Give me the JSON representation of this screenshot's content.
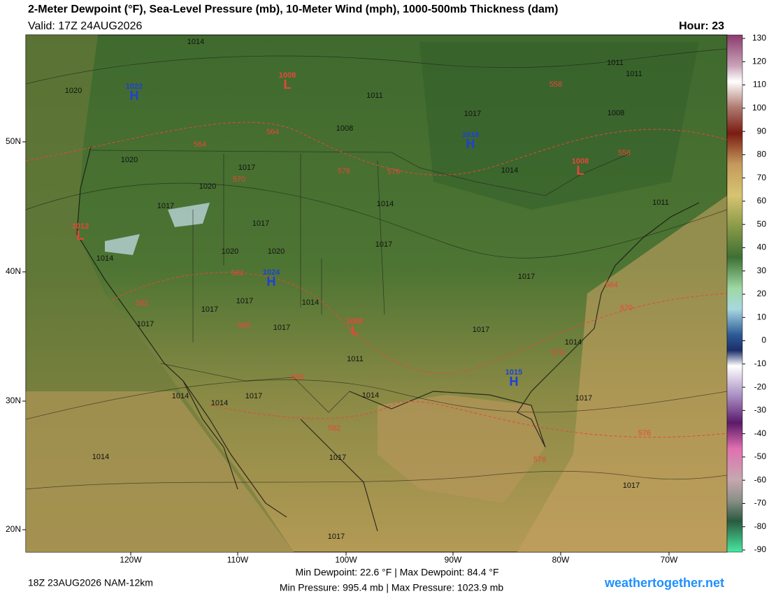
{
  "header": {
    "title": "2-Meter Dewpoint (°F), Sea-Level Pressure (mb), 10-Meter Wind (mph), 1000-500mb Thickness (dam)",
    "valid": "Valid: 17Z 24AUG2026",
    "hour": "Hour: 23"
  },
  "colorbar": {
    "ticks": [
      130,
      120,
      110,
      100,
      90,
      80,
      70,
      60,
      50,
      40,
      30,
      20,
      10,
      0,
      -10,
      -20,
      -30,
      -40,
      -50,
      -60,
      -70,
      -80,
      -90
    ]
  },
  "axes": {
    "lat_labels": [
      "50N",
      "40N",
      "30N",
      "20N"
    ],
    "lon_labels": [
      "120W",
      "110W",
      "100W",
      "90W",
      "80W",
      "70W"
    ]
  },
  "pressure_centers": [
    {
      "type": "H",
      "value": "1022"
    },
    {
      "type": "L",
      "value": "1008"
    },
    {
      "type": "H",
      "value": "1018"
    },
    {
      "type": "L",
      "value": "1008"
    },
    {
      "type": "L",
      "value": "1012"
    },
    {
      "type": "H",
      "value": "1024"
    },
    {
      "type": "L",
      "value": "1008"
    },
    {
      "type": "H",
      "value": "1015"
    }
  ],
  "isobar_labels": [
    "1014",
    "1020",
    "1011",
    "1008",
    "1017",
    "1008",
    "1011",
    "1011",
    "1020",
    "1017",
    "1020",
    "1017",
    "1014",
    "1014",
    "1011",
    "1017",
    "1017",
    "1020",
    "1020",
    "1014",
    "1017",
    "1017",
    "1017",
    "1014",
    "1017",
    "1017",
    "1017",
    "1014",
    "1011",
    "1014",
    "1014",
    "1017",
    "1014",
    "1017",
    "1017",
    "1014",
    "1017",
    "1017"
  ],
  "thickness_labels": [
    "564",
    "564",
    "570",
    "576",
    "576",
    "558",
    "558",
    "582",
    "582",
    "588",
    "588",
    "582",
    "564",
    "570",
    "576",
    "576",
    "576"
  ],
  "footer": {
    "run": "18Z 23AUG2026 NAM-12km",
    "dewpoint": "Min Dewpoint:  22.6 °F | Max Dewpoint:  84.4 °F",
    "pressure": "Min Pressure: 995.4 mb | Max Pressure: 1023.9 mb",
    "site": "weathertogether.net"
  }
}
